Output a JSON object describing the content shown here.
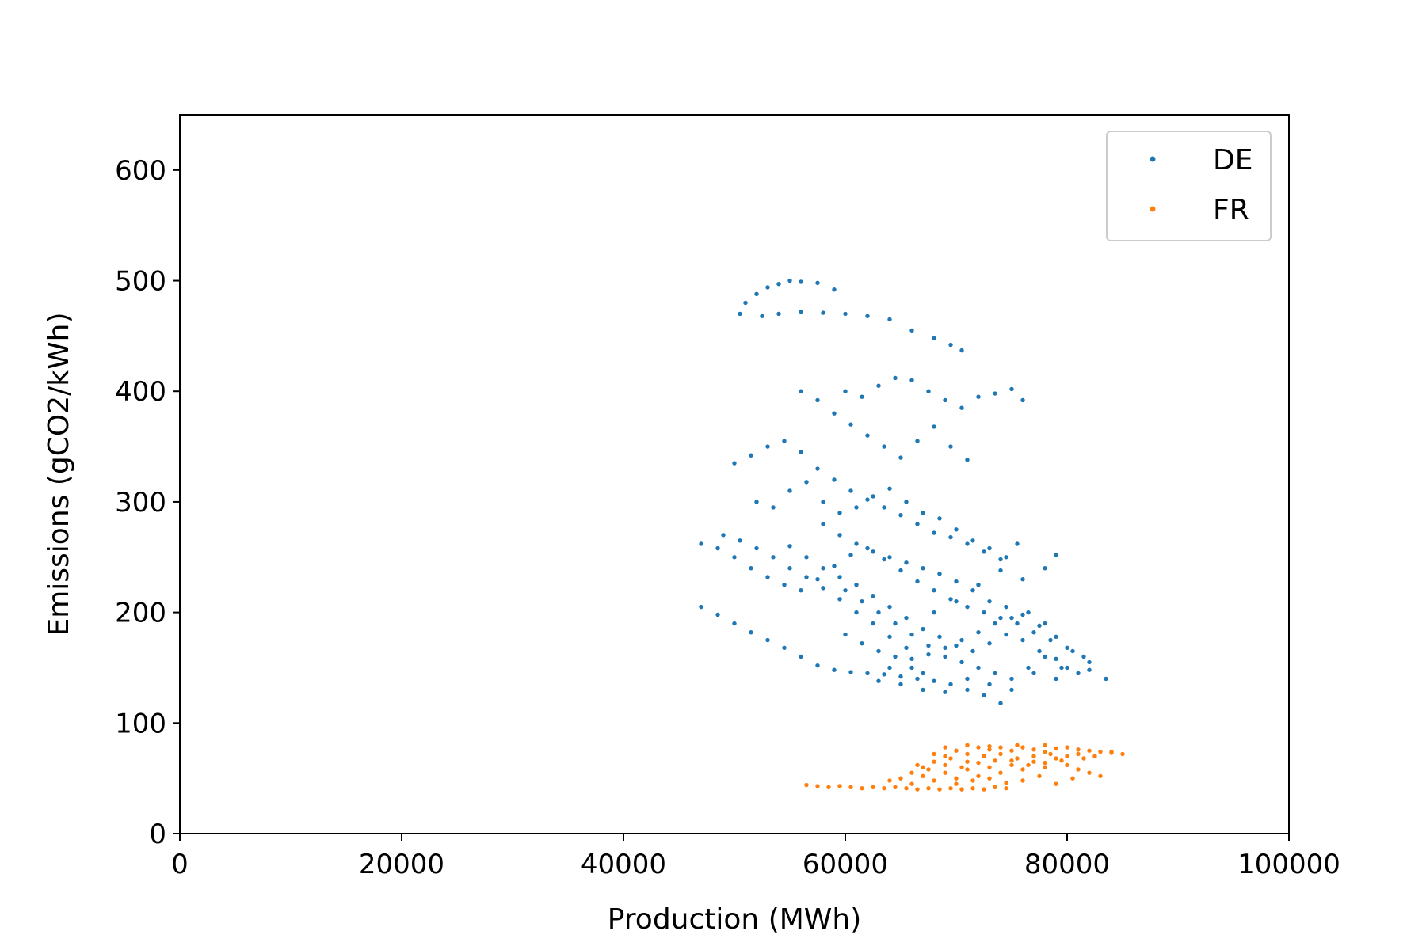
{
  "chart_data": {
    "type": "scatter",
    "title": "",
    "xlabel": "Production (MWh)",
    "ylabel": "Emissions (gCO2/kWh)",
    "xlim": [
      0,
      100000
    ],
    "ylim": [
      0,
      650
    ],
    "xticks": [
      0,
      20000,
      40000,
      60000,
      80000,
      100000
    ],
    "yticks": [
      0,
      100,
      200,
      300,
      400,
      500,
      600
    ],
    "grid": false,
    "legend_position": "upper right",
    "series": [
      {
        "name": "DE",
        "color": "#1f77b4",
        "points": [
          [
            50500,
            470
          ],
          [
            51000,
            480
          ],
          [
            52000,
            488
          ],
          [
            53000,
            494
          ],
          [
            54000,
            497
          ],
          [
            55000,
            500
          ],
          [
            56000,
            499
          ],
          [
            57500,
            498
          ],
          [
            59000,
            492
          ],
          [
            52500,
            468
          ],
          [
            54000,
            470
          ],
          [
            56000,
            472
          ],
          [
            58000,
            471
          ],
          [
            60000,
            470
          ],
          [
            62000,
            468
          ],
          [
            64000,
            465
          ],
          [
            66000,
            455
          ],
          [
            68000,
            448
          ],
          [
            69500,
            442
          ],
          [
            70500,
            437
          ],
          [
            60000,
            400
          ],
          [
            61500,
            395
          ],
          [
            63000,
            405
          ],
          [
            64500,
            412
          ],
          [
            66000,
            410
          ],
          [
            67500,
            400
          ],
          [
            69000,
            392
          ],
          [
            70500,
            385
          ],
          [
            72000,
            395
          ],
          [
            73500,
            398
          ],
          [
            75000,
            402
          ],
          [
            76000,
            392
          ],
          [
            56000,
            400
          ],
          [
            57500,
            392
          ],
          [
            59000,
            380
          ],
          [
            60500,
            370
          ],
          [
            62000,
            360
          ],
          [
            63500,
            350
          ],
          [
            65000,
            340
          ],
          [
            66500,
            355
          ],
          [
            68000,
            368
          ],
          [
            69500,
            350
          ],
          [
            71000,
            338
          ],
          [
            50000,
            335
          ],
          [
            51500,
            342
          ],
          [
            53000,
            350
          ],
          [
            54500,
            355
          ],
          [
            56000,
            345
          ],
          [
            57500,
            330
          ],
          [
            59000,
            320
          ],
          [
            60500,
            310
          ],
          [
            62000,
            302
          ],
          [
            63500,
            295
          ],
          [
            65000,
            288
          ],
          [
            66500,
            280
          ],
          [
            68000,
            272
          ],
          [
            69500,
            268
          ],
          [
            71000,
            262
          ],
          [
            72500,
            255
          ],
          [
            74000,
            248
          ],
          [
            75500,
            262
          ],
          [
            78000,
            240
          ],
          [
            79000,
            252
          ],
          [
            47000,
            262
          ],
          [
            48500,
            258
          ],
          [
            50000,
            250
          ],
          [
            51500,
            240
          ],
          [
            53000,
            232
          ],
          [
            54500,
            225
          ],
          [
            56000,
            220
          ],
          [
            57500,
            230
          ],
          [
            59000,
            242
          ],
          [
            60500,
            252
          ],
          [
            62000,
            258
          ],
          [
            63500,
            248
          ],
          [
            65000,
            238
          ],
          [
            66500,
            228
          ],
          [
            68000,
            220
          ],
          [
            69500,
            212
          ],
          [
            71000,
            205
          ],
          [
            72500,
            200
          ],
          [
            74000,
            195
          ],
          [
            75500,
            190
          ],
          [
            77000,
            182
          ],
          [
            78500,
            175
          ],
          [
            80000,
            168
          ],
          [
            81500,
            160
          ],
          [
            47000,
            205
          ],
          [
            48500,
            198
          ],
          [
            50000,
            190
          ],
          [
            51500,
            182
          ],
          [
            53000,
            175
          ],
          [
            54500,
            168
          ],
          [
            56000,
            160
          ],
          [
            57500,
            152
          ],
          [
            59000,
            148
          ],
          [
            60500,
            146
          ],
          [
            62000,
            145
          ],
          [
            63500,
            144
          ],
          [
            65000,
            142
          ],
          [
            66500,
            140
          ],
          [
            68000,
            138
          ],
          [
            69500,
            135
          ],
          [
            71000,
            130
          ],
          [
            72500,
            125
          ],
          [
            74000,
            118
          ],
          [
            58000,
            280
          ],
          [
            59500,
            270
          ],
          [
            61000,
            262
          ],
          [
            62500,
            255
          ],
          [
            64000,
            250
          ],
          [
            65500,
            245
          ],
          [
            67000,
            240
          ],
          [
            68500,
            235
          ],
          [
            70000,
            228
          ],
          [
            71500,
            220
          ],
          [
            73000,
            210
          ],
          [
            74500,
            205
          ],
          [
            76000,
            198
          ],
          [
            77500,
            188
          ],
          [
            79000,
            178
          ],
          [
            80500,
            165
          ],
          [
            82000,
            155
          ],
          [
            83500,
            140
          ],
          [
            60000,
            220
          ],
          [
            61500,
            210
          ],
          [
            63000,
            200
          ],
          [
            64500,
            190
          ],
          [
            66000,
            180
          ],
          [
            67500,
            170
          ],
          [
            69000,
            160
          ],
          [
            70500,
            155
          ],
          [
            72000,
            150
          ],
          [
            73500,
            145
          ],
          [
            75000,
            140
          ],
          [
            76500,
            150
          ],
          [
            78000,
            160
          ],
          [
            79500,
            150
          ],
          [
            81000,
            145
          ],
          [
            55000,
            260
          ],
          [
            56500,
            250
          ],
          [
            58000,
            240
          ],
          [
            59500,
            232
          ],
          [
            61000,
            225
          ],
          [
            62500,
            215
          ],
          [
            64000,
            205
          ],
          [
            65500,
            195
          ],
          [
            67000,
            185
          ],
          [
            68500,
            178
          ],
          [
            70000,
            170
          ],
          [
            71500,
            165
          ],
          [
            73000,
            172
          ],
          [
            74500,
            180
          ],
          [
            76000,
            175
          ],
          [
            77500,
            165
          ],
          [
            79000,
            158
          ],
          [
            52000,
            300
          ],
          [
            53500,
            295
          ],
          [
            55000,
            310
          ],
          [
            56500,
            318
          ],
          [
            58000,
            300
          ],
          [
            59500,
            290
          ],
          [
            61000,
            295
          ],
          [
            62500,
            305
          ],
          [
            64000,
            312
          ],
          [
            65500,
            300
          ],
          [
            67000,
            290
          ],
          [
            68500,
            285
          ],
          [
            70000,
            275
          ],
          [
            71500,
            265
          ],
          [
            73000,
            258
          ],
          [
            74500,
            250
          ],
          [
            60000,
            180
          ],
          [
            61500,
            172
          ],
          [
            63000,
            165
          ],
          [
            64500,
            160
          ],
          [
            66000,
            158
          ],
          [
            67500,
            162
          ],
          [
            69000,
            168
          ],
          [
            70500,
            175
          ],
          [
            72000,
            182
          ],
          [
            73500,
            190
          ],
          [
            75000,
            195
          ],
          [
            76500,
            200
          ],
          [
            78000,
            190
          ],
          [
            66000,
            150
          ],
          [
            67000,
            145
          ],
          [
            64000,
            150
          ],
          [
            63000,
            138
          ],
          [
            65000,
            135
          ],
          [
            67000,
            130
          ],
          [
            69000,
            128
          ],
          [
            71000,
            140
          ],
          [
            73000,
            135
          ],
          [
            75000,
            130
          ],
          [
            77000,
            145
          ],
          [
            79000,
            140
          ],
          [
            80000,
            150
          ],
          [
            82000,
            148
          ],
          [
            49000,
            270
          ],
          [
            50500,
            265
          ],
          [
            52000,
            258
          ],
          [
            53500,
            250
          ],
          [
            55000,
            240
          ],
          [
            56500,
            232
          ],
          [
            58000,
            222
          ],
          [
            59500,
            212
          ],
          [
            61000,
            200
          ],
          [
            62500,
            190
          ],
          [
            64000,
            178
          ],
          [
            65500,
            168
          ],
          [
            68000,
            200
          ],
          [
            70000,
            210
          ],
          [
            72000,
            225
          ],
          [
            74000,
            238
          ],
          [
            76000,
            230
          ]
        ]
      },
      {
        "name": "FR",
        "color": "#ff7f0e",
        "points": [
          [
            56500,
            44
          ],
          [
            57500,
            43
          ],
          [
            58500,
            42
          ],
          [
            59500,
            43
          ],
          [
            60500,
            42
          ],
          [
            61500,
            41
          ],
          [
            62500,
            42
          ],
          [
            63500,
            41
          ],
          [
            64500,
            42
          ],
          [
            65500,
            41
          ],
          [
            66500,
            40
          ],
          [
            67500,
            41
          ],
          [
            68500,
            40
          ],
          [
            69500,
            41
          ],
          [
            70500,
            40
          ],
          [
            71500,
            41
          ],
          [
            72500,
            40
          ],
          [
            73500,
            42
          ],
          [
            74500,
            41
          ],
          [
            66000,
            55
          ],
          [
            67000,
            60
          ],
          [
            68000,
            65
          ],
          [
            69000,
            70
          ],
          [
            70000,
            75
          ],
          [
            71000,
            72
          ],
          [
            72000,
            78
          ],
          [
            73000,
            76
          ],
          [
            74000,
            78
          ],
          [
            75000,
            75
          ],
          [
            76000,
            78
          ],
          [
            77000,
            76
          ],
          [
            78000,
            74
          ],
          [
            79000,
            77
          ],
          [
            80000,
            78
          ],
          [
            81000,
            76
          ],
          [
            82000,
            75
          ],
          [
            83000,
            74
          ],
          [
            84000,
            73
          ],
          [
            85000,
            72
          ],
          [
            64000,
            48
          ],
          [
            65000,
            50
          ],
          [
            66000,
            45
          ],
          [
            67000,
            52
          ],
          [
            68000,
            48
          ],
          [
            69000,
            55
          ],
          [
            70000,
            50
          ],
          [
            71000,
            58
          ],
          [
            72000,
            52
          ],
          [
            73000,
            60
          ],
          [
            74000,
            55
          ],
          [
            75000,
            62
          ],
          [
            76000,
            58
          ],
          [
            77000,
            65
          ],
          [
            78000,
            60
          ],
          [
            79000,
            68
          ],
          [
            80000,
            62
          ],
          [
            81000,
            58
          ],
          [
            82000,
            55
          ],
          [
            83000,
            52
          ],
          [
            68000,
            72
          ],
          [
            69500,
            68
          ],
          [
            71000,
            65
          ],
          [
            72500,
            70
          ],
          [
            74000,
            72
          ],
          [
            75500,
            68
          ],
          [
            77000,
            70
          ],
          [
            78500,
            72
          ],
          [
            80000,
            70
          ],
          [
            81500,
            68
          ],
          [
            70000,
            45
          ],
          [
            71500,
            48
          ],
          [
            73000,
            50
          ],
          [
            74500,
            46
          ],
          [
            76000,
            48
          ],
          [
            77500,
            52
          ],
          [
            79000,
            45
          ],
          [
            80500,
            50
          ],
          [
            66500,
            62
          ],
          [
            67500,
            58
          ],
          [
            69000,
            62
          ],
          [
            70500,
            60
          ],
          [
            72000,
            64
          ],
          [
            73500,
            66
          ],
          [
            75000,
            66
          ],
          [
            76500,
            62
          ],
          [
            78000,
            64
          ],
          [
            79500,
            66
          ],
          [
            81000,
            72
          ],
          [
            82500,
            70
          ],
          [
            84000,
            74
          ],
          [
            69000,
            78
          ],
          [
            71000,
            80
          ],
          [
            73000,
            79
          ],
          [
            75500,
            80
          ],
          [
            78000,
            80
          ]
        ]
      }
    ]
  }
}
